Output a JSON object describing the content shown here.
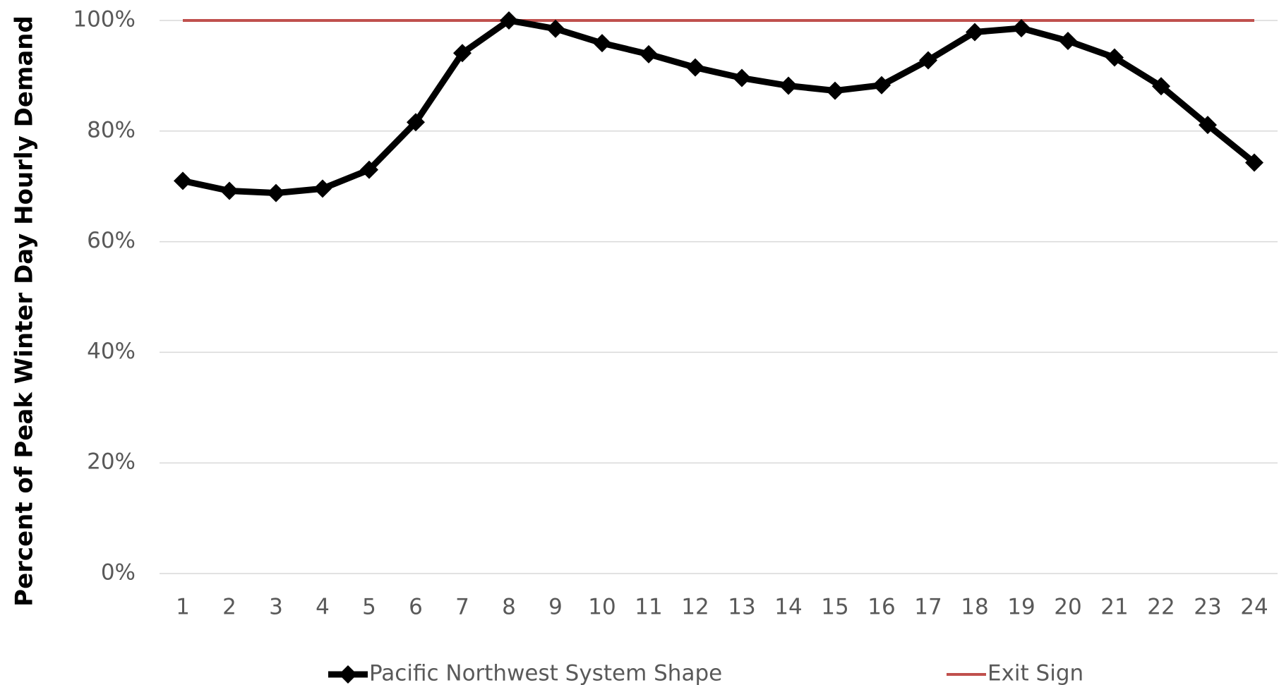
{
  "chart_data": {
    "type": "line",
    "y_label": "Percent of Peak Winter Day Hourly Demand",
    "categories": [
      "1",
      "2",
      "3",
      "4",
      "5",
      "6",
      "7",
      "8",
      "9",
      "10",
      "11",
      "12",
      "13",
      "14",
      "15",
      "16",
      "17",
      "18",
      "19",
      "20",
      "21",
      "22",
      "23",
      "24"
    ],
    "series": [
      {
        "name": "Pacific Northwest System Shape",
        "color": "#000000",
        "marker": "diamond",
        "values": [
          71,
          69.2,
          68.8,
          69.6,
          73,
          81.6,
          94.1,
          100,
          98.5,
          95.9,
          93.9,
          91.5,
          89.6,
          88.2,
          87.3,
          88.3,
          92.8,
          97.9,
          98.6,
          96.3,
          93.3,
          88.1,
          81.1,
          74.3
        ]
      },
      {
        "name": "Exit Sign",
        "color": "#c0504d",
        "marker": "none",
        "values": [
          100,
          100,
          100,
          100,
          100,
          100,
          100,
          100,
          100,
          100,
          100,
          100,
          100,
          100,
          100,
          100,
          100,
          100,
          100,
          100,
          100,
          100,
          100,
          100
        ]
      }
    ],
    "ylim": [
      0,
      100
    ],
    "yticks": [
      {
        "value": 0,
        "label": "0%"
      },
      {
        "value": 20,
        "label": "20%"
      },
      {
        "value": 40,
        "label": "40%"
      },
      {
        "value": 60,
        "label": "60%"
      },
      {
        "value": 80,
        "label": "80%"
      },
      {
        "value": 100,
        "label": "100%"
      }
    ],
    "grid": true,
    "legend": "bottom"
  }
}
